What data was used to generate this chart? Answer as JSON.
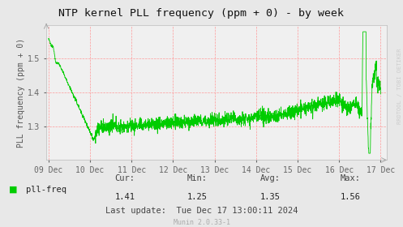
{
  "title": "NTP kernel PLL frequency (ppm + 0) - by week",
  "ylabel": "PLL frequency (ppm + 0)",
  "bg_color": "#e8e8e8",
  "plot_bg_color": "#f0f0f0",
  "line_color": "#00cc00",
  "grid_color": "#ff9999",
  "x_tick_labels": [
    "09 Dec",
    "10 Dec",
    "11 Dec",
    "12 Dec",
    "13 Dec",
    "14 Dec",
    "15 Dec",
    "16 Dec",
    "17 Dec"
  ],
  "legend_label": "pll-freq",
  "cur": "1.41",
  "min": "1.25",
  "avg": "1.35",
  "max": "1.56",
  "last_update": "Last update:  Tue Dec 17 13:00:11 2024",
  "munin_text": "Munin 2.0.33-1",
  "rrdtool_text": "RRDTOOL / TOBI OETIKER",
  "title_fontsize": 9.5,
  "axis_fontsize": 7,
  "legend_fontsize": 7.5,
  "stats_fontsize": 7.5
}
